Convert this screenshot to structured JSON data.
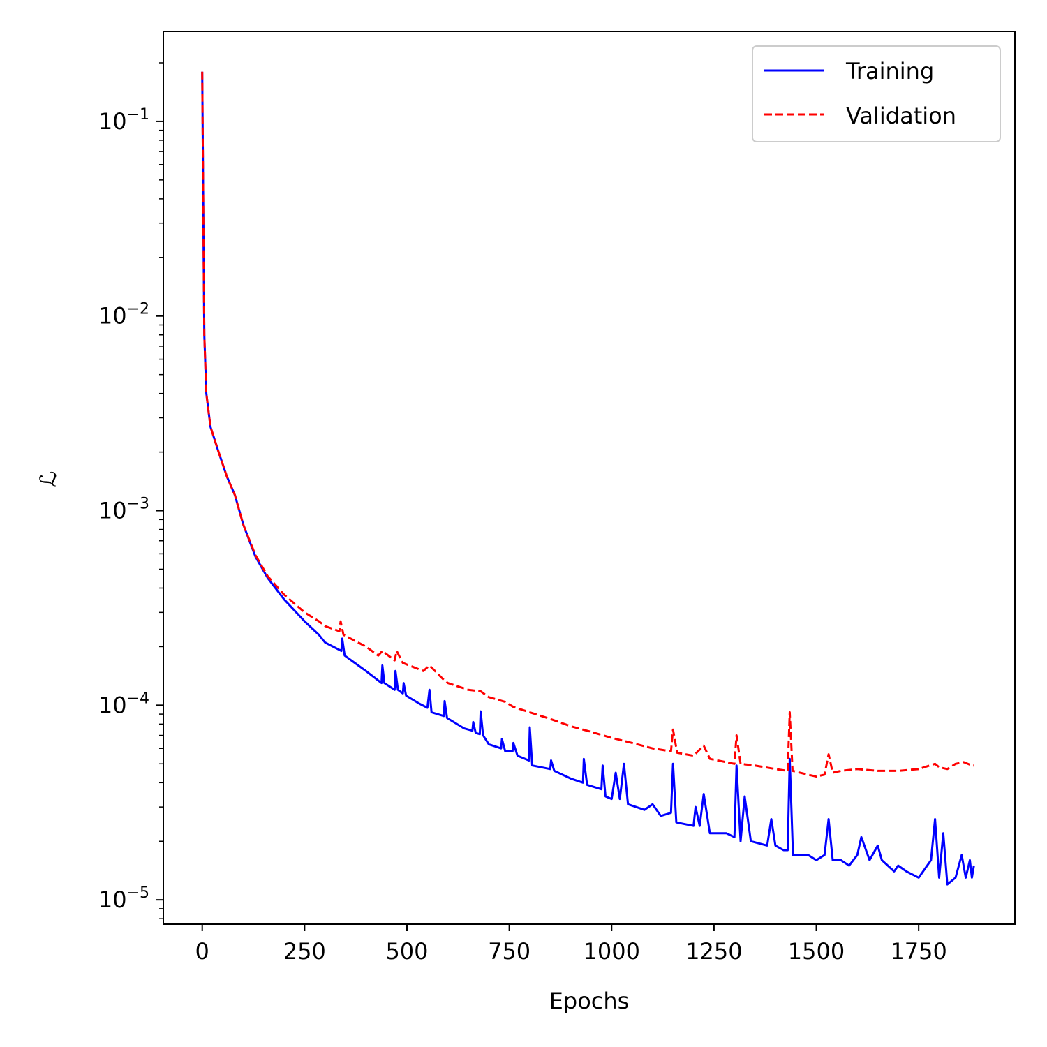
{
  "chart_data": {
    "type": "line",
    "title": "",
    "xlabel": "Epochs",
    "ylabel": "ℒ",
    "xscale": "linear",
    "yscale": "log",
    "xlim": [
      -95,
      1985
    ],
    "ylim": [
      7.5e-06,
      0.29
    ],
    "grid": false,
    "legend_position": "top-right",
    "x_ticks": [
      {
        "value": 0,
        "label": "0"
      },
      {
        "value": 250,
        "label": "250"
      },
      {
        "value": 500,
        "label": "500"
      },
      {
        "value": 750,
        "label": "750"
      },
      {
        "value": 1000,
        "label": "1000"
      },
      {
        "value": 1250,
        "label": "1250"
      },
      {
        "value": 1500,
        "label": "1500"
      },
      {
        "value": 1750,
        "label": "1750"
      }
    ],
    "y_ticks": [
      {
        "value": 0.1,
        "base": "10",
        "exp": "−1"
      },
      {
        "value": 0.01,
        "base": "10",
        "exp": "−2"
      },
      {
        "value": 0.001,
        "base": "10",
        "exp": "−3"
      },
      {
        "value": 0.0001,
        "base": "10",
        "exp": "−4"
      },
      {
        "value": 1e-05,
        "base": "10",
        "exp": "−5"
      }
    ],
    "series": [
      {
        "name": "Training",
        "color": "#0000ff",
        "style": "solid",
        "points": [
          [
            0,
            0.18
          ],
          [
            2,
            0.05
          ],
          [
            5,
            0.008
          ],
          [
            10,
            0.004
          ],
          [
            20,
            0.0027
          ],
          [
            40,
            0.002
          ],
          [
            60,
            0.0015
          ],
          [
            80,
            0.0012
          ],
          [
            100,
            0.00085
          ],
          [
            130,
            0.00058
          ],
          [
            160,
            0.00045
          ],
          [
            200,
            0.00035
          ],
          [
            250,
            0.00027
          ],
          [
            285,
            0.00023
          ],
          [
            300,
            0.00021
          ],
          [
            340,
            0.00019
          ],
          [
            342,
            0.00022
          ],
          [
            348,
            0.00018
          ],
          [
            400,
            0.00015
          ],
          [
            438,
            0.00013
          ],
          [
            440,
            0.00016
          ],
          [
            445,
            0.00013
          ],
          [
            470,
            0.00012
          ],
          [
            472,
            0.00015
          ],
          [
            478,
            0.00012
          ],
          [
            490,
            0.000115
          ],
          [
            492,
            0.00013
          ],
          [
            498,
            0.000112
          ],
          [
            530,
            0.000102
          ],
          [
            550,
            9.7e-05
          ],
          [
            555,
            0.00012
          ],
          [
            560,
            9.2e-05
          ],
          [
            590,
            8.8e-05
          ],
          [
            592,
            0.000105
          ],
          [
            598,
            8.6e-05
          ],
          [
            640,
            7.6e-05
          ],
          [
            660,
            7.4e-05
          ],
          [
            662,
            8.2e-05
          ],
          [
            668,
            7.2e-05
          ],
          [
            678,
            7.1e-05
          ],
          [
            680,
            9.3e-05
          ],
          [
            686,
            7e-05
          ],
          [
            700,
            6.3e-05
          ],
          [
            730,
            6e-05
          ],
          [
            732,
            6.7e-05
          ],
          [
            740,
            5.8e-05
          ],
          [
            758,
            5.8e-05
          ],
          [
            760,
            6.4e-05
          ],
          [
            770,
            5.5e-05
          ],
          [
            798,
            5.2e-05
          ],
          [
            800,
            7.7e-05
          ],
          [
            806,
            4.9e-05
          ],
          [
            850,
            4.7e-05
          ],
          [
            852,
            5.2e-05
          ],
          [
            860,
            4.6e-05
          ],
          [
            900,
            4.2e-05
          ],
          [
            930,
            4e-05
          ],
          [
            932,
            5.3e-05
          ],
          [
            940,
            3.9e-05
          ],
          [
            975,
            3.7e-05
          ],
          [
            978,
            4.9e-05
          ],
          [
            985,
            3.4e-05
          ],
          [
            1000,
            3.3e-05
          ],
          [
            1010,
            4.5e-05
          ],
          [
            1020,
            3.3e-05
          ],
          [
            1030,
            5e-05
          ],
          [
            1040,
            3.1e-05
          ],
          [
            1080,
            2.9e-05
          ],
          [
            1100,
            3.1e-05
          ],
          [
            1120,
            2.7e-05
          ],
          [
            1145,
            2.8e-05
          ],
          [
            1150,
            5e-05
          ],
          [
            1158,
            2.5e-05
          ],
          [
            1200,
            2.4e-05
          ],
          [
            1205,
            3e-05
          ],
          [
            1215,
            2.4e-05
          ],
          [
            1225,
            3.5e-05
          ],
          [
            1240,
            2.2e-05
          ],
          [
            1280,
            2.2e-05
          ],
          [
            1300,
            2.1e-05
          ],
          [
            1305,
            4.9e-05
          ],
          [
            1315,
            2e-05
          ],
          [
            1325,
            3.4e-05
          ],
          [
            1340,
            2e-05
          ],
          [
            1380,
            1.9e-05
          ],
          [
            1390,
            2.6e-05
          ],
          [
            1400,
            1.9e-05
          ],
          [
            1420,
            1.8e-05
          ],
          [
            1430,
            1.8e-05
          ],
          [
            1435,
            5.3e-05
          ],
          [
            1443,
            1.7e-05
          ],
          [
            1480,
            1.7e-05
          ],
          [
            1500,
            1.6e-05
          ],
          [
            1520,
            1.7e-05
          ],
          [
            1530,
            2.6e-05
          ],
          [
            1540,
            1.6e-05
          ],
          [
            1560,
            1.6e-05
          ],
          [
            1580,
            1.5e-05
          ],
          [
            1600,
            1.7e-05
          ],
          [
            1610,
            2.1e-05
          ],
          [
            1630,
            1.6e-05
          ],
          [
            1650,
            1.9e-05
          ],
          [
            1660,
            1.6e-05
          ],
          [
            1690,
            1.4e-05
          ],
          [
            1700,
            1.5e-05
          ],
          [
            1720,
            1.4e-05
          ],
          [
            1750,
            1.3e-05
          ],
          [
            1780,
            1.6e-05
          ],
          [
            1790,
            2.6e-05
          ],
          [
            1800,
            1.3e-05
          ],
          [
            1810,
            2.2e-05
          ],
          [
            1820,
            1.2e-05
          ],
          [
            1840,
            1.3e-05
          ],
          [
            1855,
            1.7e-05
          ],
          [
            1865,
            1.3e-05
          ],
          [
            1875,
            1.6e-05
          ],
          [
            1880,
            1.3e-05
          ],
          [
            1885,
            1.5e-05
          ]
        ]
      },
      {
        "name": "Validation",
        "color": "#ff0000",
        "style": "dashed",
        "points": [
          [
            0,
            0.18
          ],
          [
            2,
            0.05
          ],
          [
            5,
            0.008
          ],
          [
            10,
            0.004
          ],
          [
            20,
            0.0027
          ],
          [
            40,
            0.002
          ],
          [
            60,
            0.0015
          ],
          [
            80,
            0.0012
          ],
          [
            100,
            0.00085
          ],
          [
            130,
            0.00059
          ],
          [
            160,
            0.00046
          ],
          [
            200,
            0.00037
          ],
          [
            250,
            0.0003
          ],
          [
            285,
            0.00027
          ],
          [
            300,
            0.000255
          ],
          [
            335,
            0.00024
          ],
          [
            338,
            0.00027
          ],
          [
            345,
            0.00023
          ],
          [
            400,
            0.0002
          ],
          [
            430,
            0.00018
          ],
          [
            440,
            0.00019
          ],
          [
            470,
            0.00017
          ],
          [
            475,
            0.00019
          ],
          [
            490,
            0.000165
          ],
          [
            540,
            0.00015
          ],
          [
            555,
            0.00016
          ],
          [
            590,
            0.000135
          ],
          [
            600,
            0.00013
          ],
          [
            650,
            0.00012
          ],
          [
            680,
            0.000118
          ],
          [
            700,
            0.00011
          ],
          [
            740,
            0.000104
          ],
          [
            760,
            9.8e-05
          ],
          [
            800,
            9.2e-05
          ],
          [
            850,
            8.5e-05
          ],
          [
            900,
            7.8e-05
          ],
          [
            950,
            7.3e-05
          ],
          [
            1000,
            6.8e-05
          ],
          [
            1050,
            6.4e-05
          ],
          [
            1100,
            6e-05
          ],
          [
            1145,
            5.8e-05
          ],
          [
            1150,
            7.5e-05
          ],
          [
            1160,
            5.7e-05
          ],
          [
            1200,
            5.5e-05
          ],
          [
            1225,
            6.2e-05
          ],
          [
            1240,
            5.3e-05
          ],
          [
            1300,
            5e-05
          ],
          [
            1305,
            7e-05
          ],
          [
            1315,
            5e-05
          ],
          [
            1350,
            4.9e-05
          ],
          [
            1400,
            4.7e-05
          ],
          [
            1430,
            4.6e-05
          ],
          [
            1435,
            9.2e-05
          ],
          [
            1442,
            4.6e-05
          ],
          [
            1480,
            4.4e-05
          ],
          [
            1500,
            4.3e-05
          ],
          [
            1520,
            4.4e-05
          ],
          [
            1530,
            5.6e-05
          ],
          [
            1540,
            4.5e-05
          ],
          [
            1560,
            4.6e-05
          ],
          [
            1600,
            4.7e-05
          ],
          [
            1650,
            4.6e-05
          ],
          [
            1700,
            4.6e-05
          ],
          [
            1750,
            4.7e-05
          ],
          [
            1790,
            5e-05
          ],
          [
            1800,
            4.8e-05
          ],
          [
            1820,
            4.7e-05
          ],
          [
            1840,
            5e-05
          ],
          [
            1860,
            5.1e-05
          ],
          [
            1880,
            4.9e-05
          ],
          [
            1885,
            4.9e-05
          ]
        ]
      }
    ]
  }
}
